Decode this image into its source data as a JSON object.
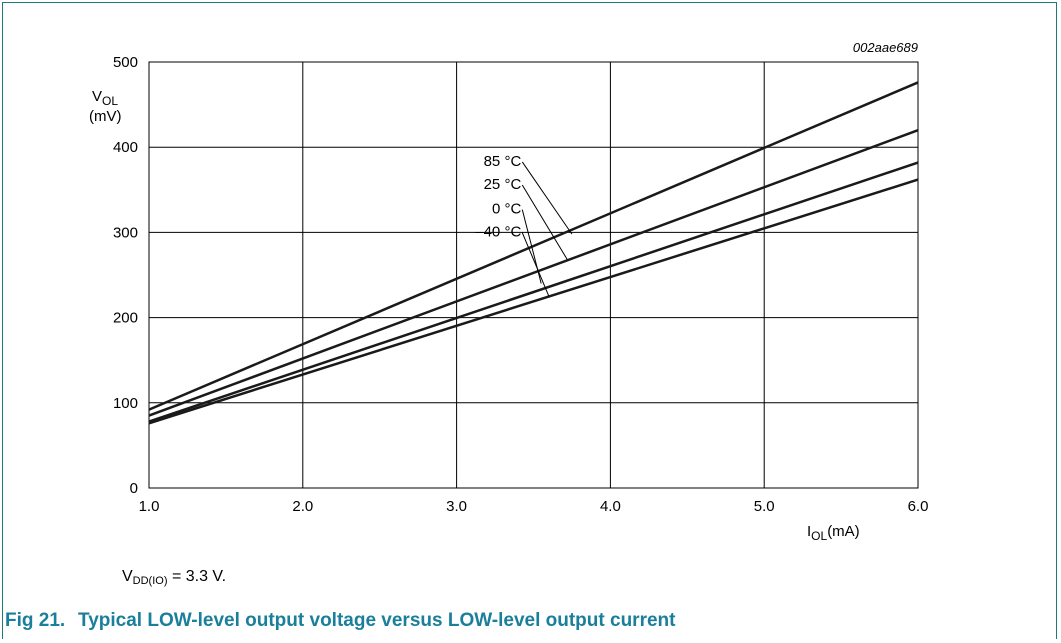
{
  "chart_data": {
    "type": "line",
    "code": "002aae689",
    "ylabel_main": "V",
    "ylabel_sub": "OL",
    "ylabel_unit": "(mV)",
    "xlabel_main": "I",
    "xlabel_sub": "OL",
    "xlabel_unit": "(mA)",
    "xlim": [
      1.0,
      6.0
    ],
    "ylim": [
      0,
      500
    ],
    "x_ticks": [
      1.0,
      2.0,
      3.0,
      4.0,
      5.0,
      6.0
    ],
    "x_tick_labels": [
      "1.0",
      "2.0",
      "3.0",
      "4.0",
      "5.0",
      "6.0"
    ],
    "y_ticks": [
      0,
      100,
      200,
      300,
      400,
      500
    ],
    "y_tick_labels": [
      "0",
      "100",
      "200",
      "300",
      "400",
      "500"
    ],
    "grid": true,
    "series": [
      {
        "name": "85 °C",
        "x": [
          1.0,
          6.0
        ],
        "y": [
          92,
          476
        ]
      },
      {
        "name": "25 °C",
        "x": [
          1.0,
          6.0
        ],
        "y": [
          85,
          420
        ]
      },
      {
        "name": "0 °C",
        "x": [
          1.0,
          6.0
        ],
        "y": [
          78,
          382
        ]
      },
      {
        "name": "–40 °C",
        "x": [
          1.0,
          6.0
        ],
        "y": [
          76,
          362
        ]
      }
    ],
    "annotations": [
      {
        "series": "85 °C",
        "label_at": [
          3.05,
          378
        ],
        "points_to": [
          3.75,
          298
        ]
      },
      {
        "series": "25 °C",
        "label_at": [
          3.05,
          351
        ],
        "points_to": [
          3.72,
          268
        ]
      },
      {
        "series": "0 °C",
        "label_at": [
          3.05,
          322
        ],
        "points_to": [
          3.55,
          240
        ]
      },
      {
        "series": "–40 °C",
        "label_at": [
          3.05,
          295
        ],
        "points_to": [
          3.6,
          225
        ]
      }
    ]
  },
  "condition": {
    "main": "V",
    "sub": "DD(IO)",
    "rest": " = 3.3 V."
  },
  "caption": {
    "number": "Fig 21.",
    "title": "Typical LOW-level output voltage versus LOW-level output current"
  }
}
